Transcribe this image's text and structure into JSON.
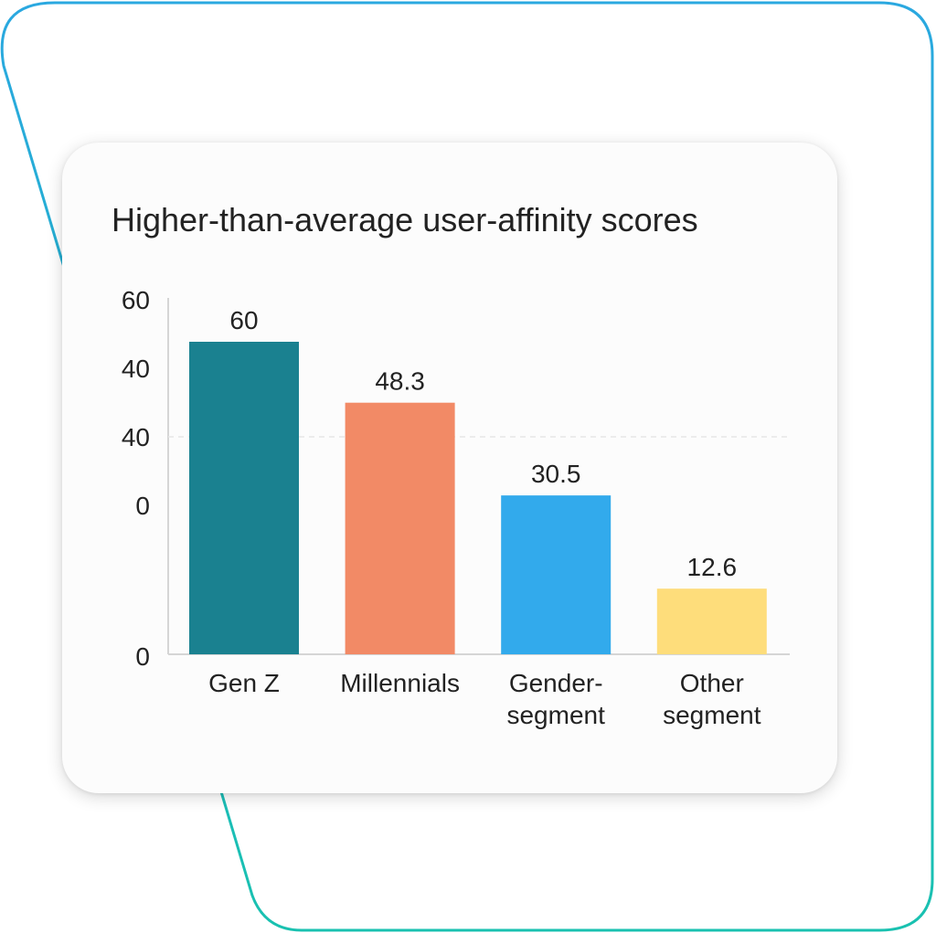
{
  "chart_data": {
    "type": "bar",
    "title": "Higher-than-average user-affinity scores",
    "xlabel": "",
    "ylabel": "",
    "categories": [
      [
        "Gen Z"
      ],
      [
        "Millennials"
      ],
      [
        "Gender-",
        "segment"
      ],
      [
        "Other",
        "segment"
      ]
    ],
    "values": [
      60,
      48.3,
      30.5,
      12.6
    ],
    "data_labels": [
      "60",
      "48.3",
      "30.5",
      "12.6"
    ],
    "y_tick_labels": [
      "60",
      "40",
      "40",
      "0",
      "0"
    ],
    "ylim": [
      0,
      60
    ],
    "colors": [
      "#1a8190",
      "#f28a66",
      "#32aaec",
      "#fedd7b"
    ],
    "grid": "single dashed reference line",
    "legend": "none"
  },
  "theme": {
    "frame_gradient_start": "#2aa8e0",
    "frame_gradient_end": "#19c1b0",
    "axis_color": "#d5d5d5"
  }
}
